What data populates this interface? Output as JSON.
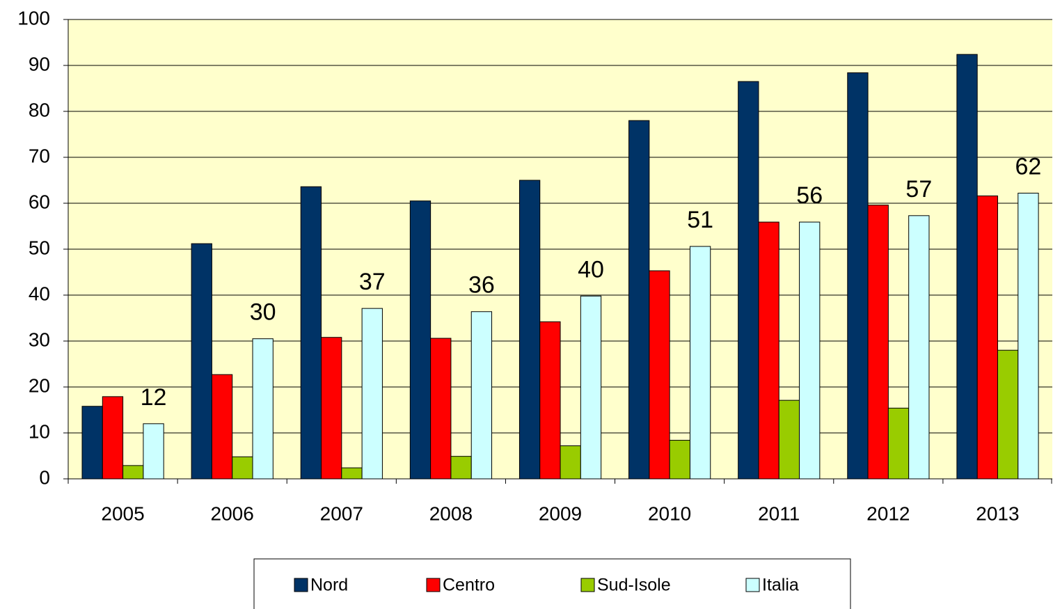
{
  "chart_data": {
    "type": "bar",
    "categories": [
      "2005",
      "2006",
      "2007",
      "2008",
      "2009",
      "2010",
      "2011",
      "2012",
      "2013"
    ],
    "series": [
      {
        "name": "Nord",
        "color": "#003366",
        "values": [
          15.8,
          51.2,
          63.6,
          60.5,
          65.0,
          78.0,
          86.5,
          88.4,
          92.4
        ]
      },
      {
        "name": "Centro",
        "color": "#ff0000",
        "values": [
          17.9,
          22.7,
          30.8,
          30.6,
          34.2,
          45.3,
          55.9,
          59.6,
          61.6
        ]
      },
      {
        "name": "Sud-Isole",
        "color": "#99cc00",
        "values": [
          2.9,
          4.8,
          2.4,
          4.9,
          7.2,
          8.4,
          17.1,
          15.4,
          28.0
        ]
      },
      {
        "name": "Italia",
        "color": "#ccffff",
        "values": [
          12.0,
          30.5,
          37.1,
          36.4,
          39.8,
          50.6,
          55.9,
          57.3,
          62.2
        ],
        "value_labels": [
          "12",
          "30",
          "37",
          "36",
          "40",
          "51",
          "56",
          "57",
          "62"
        ]
      }
    ],
    "ylim": [
      0,
      100
    ],
    "yticks": [
      0,
      10,
      20,
      30,
      40,
      50,
      60,
      70,
      80,
      90,
      100
    ],
    "grid": true,
    "background": "#ffffcc",
    "legend": "bottom"
  }
}
